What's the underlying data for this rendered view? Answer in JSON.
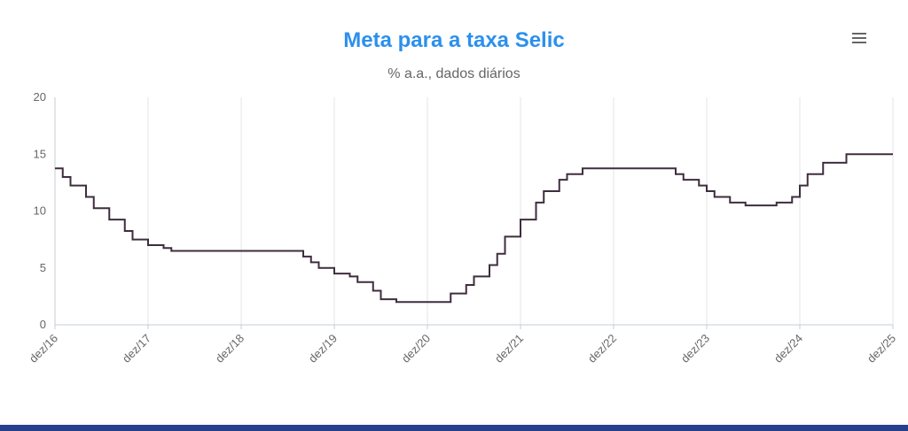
{
  "page": {
    "background": "#ffffff",
    "footer_bar_color": "#26418c"
  },
  "menu": {
    "icon": "hamburger-icon"
  },
  "chart_data": {
    "type": "line",
    "step": "left",
    "title": "Meta para a taxa Selic",
    "subtitle": "% a.a., dados diários",
    "title_color": "#2b90ed",
    "subtitle_color": "#666666",
    "ylim": [
      0,
      20
    ],
    "y_ticks": [
      0,
      5,
      10,
      15,
      20
    ],
    "x_range": [
      "2016-12",
      "2025-12"
    ],
    "x_tick_labels": [
      "dez/16",
      "dez/17",
      "dez/18",
      "dez/19",
      "dez/20",
      "dez/21",
      "dez/22",
      "dez/23",
      "dez/24",
      "dez/25"
    ],
    "grid": "vertical",
    "legend": "none",
    "colors": {
      "series": "#3e2d3e",
      "grid": "#e6e6e6",
      "axis_line": "#c6ccd4",
      "axis_text": "#666666"
    },
    "series": [
      {
        "name": "Meta para a taxa Selic",
        "unit": "% a.a.",
        "points": [
          {
            "date": "2016-12",
            "value": 13.75
          },
          {
            "date": "2017-01",
            "value": 13.0
          },
          {
            "date": "2017-02",
            "value": 12.25
          },
          {
            "date": "2017-04",
            "value": 11.25
          },
          {
            "date": "2017-05",
            "value": 10.25
          },
          {
            "date": "2017-07",
            "value": 9.25
          },
          {
            "date": "2017-09",
            "value": 8.25
          },
          {
            "date": "2017-10",
            "value": 7.5
          },
          {
            "date": "2017-12",
            "value": 7.0
          },
          {
            "date": "2018-02",
            "value": 6.75
          },
          {
            "date": "2018-03",
            "value": 6.5
          },
          {
            "date": "2019-08",
            "value": 6.0
          },
          {
            "date": "2019-09",
            "value": 5.5
          },
          {
            "date": "2019-10",
            "value": 5.0
          },
          {
            "date": "2019-12",
            "value": 4.5
          },
          {
            "date": "2020-02",
            "value": 4.25
          },
          {
            "date": "2020-03",
            "value": 3.75
          },
          {
            "date": "2020-05",
            "value": 3.0
          },
          {
            "date": "2020-06",
            "value": 2.25
          },
          {
            "date": "2020-08",
            "value": 2.0
          },
          {
            "date": "2021-03",
            "value": 2.75
          },
          {
            "date": "2021-05",
            "value": 3.5
          },
          {
            "date": "2021-06",
            "value": 4.25
          },
          {
            "date": "2021-08",
            "value": 5.25
          },
          {
            "date": "2021-09",
            "value": 6.25
          },
          {
            "date": "2021-10",
            "value": 7.75
          },
          {
            "date": "2021-12",
            "value": 9.25
          },
          {
            "date": "2022-02",
            "value": 10.75
          },
          {
            "date": "2022-03",
            "value": 11.75
          },
          {
            "date": "2022-05",
            "value": 12.75
          },
          {
            "date": "2022-06",
            "value": 13.25
          },
          {
            "date": "2022-08",
            "value": 13.75
          },
          {
            "date": "2023-08",
            "value": 13.25
          },
          {
            "date": "2023-09",
            "value": 12.75
          },
          {
            "date": "2023-11",
            "value": 12.25
          },
          {
            "date": "2023-12",
            "value": 11.75
          },
          {
            "date": "2024-01",
            "value": 11.25
          },
          {
            "date": "2024-03",
            "value": 10.75
          },
          {
            "date": "2024-05",
            "value": 10.5
          },
          {
            "date": "2024-09",
            "value": 10.75
          },
          {
            "date": "2024-11",
            "value": 11.25
          },
          {
            "date": "2024-12",
            "value": 12.25
          },
          {
            "date": "2025-01",
            "value": 13.25
          },
          {
            "date": "2025-03",
            "value": 14.25
          },
          {
            "date": "2025-06",
            "value": 15.0
          },
          {
            "date": "2025-12",
            "value": 15.0
          }
        ]
      }
    ]
  }
}
